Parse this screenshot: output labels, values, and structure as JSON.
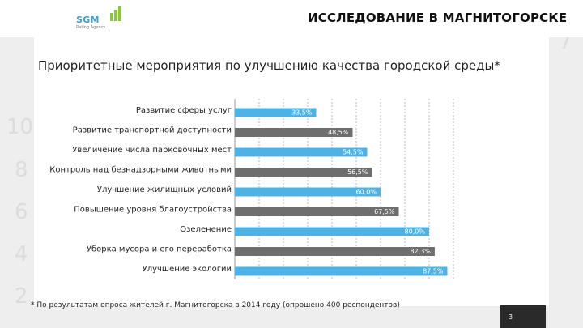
{
  "header": {
    "logo_text": "SGM",
    "logo_subtitle": "Rating Agency",
    "page_title": "ИССЛЕДОВАНИЕ В МАГНИТОГОРСКЕ"
  },
  "subtitle": "Приоритетные мероприятия по улучшению качества городской среды*",
  "footnote": "* По результатам опроса жителей г. Магнитогорска в 2014 году (опрошено 400 респондентов)",
  "page_number": "3",
  "colors": {
    "bar_blue": "#4db3e6",
    "bar_gray": "#6e6e6e",
    "logo_green": "#8cc63f",
    "logo_blue": "#3f9fd3"
  },
  "chart_data": {
    "type": "bar",
    "orientation": "horizontal",
    "categories": [
      "Развитие сферы услуг",
      "Развитие транспортной доступности",
      "Увеличение числа парковочных мест",
      "Контроль над безнадзорными животными",
      "Улучшение жилищных условий",
      "Повышение уровня благоустройства",
      "Озеленение",
      "Уборка мусора и его переработка",
      "Улучшение экологии"
    ],
    "values": [
      33.5,
      48.5,
      54.5,
      56.5,
      60.0,
      67.5,
      80.0,
      82.3,
      87.5
    ],
    "value_labels": [
      "33,5%",
      "48,5%",
      "54,5%",
      "56,5%",
      "60,0%",
      "67,5%",
      "80,0%",
      "82,3%",
      "87,5%"
    ],
    "bar_colors": [
      "blue",
      "gray",
      "blue",
      "gray",
      "blue",
      "gray",
      "blue",
      "gray",
      "blue"
    ],
    "xlim": [
      0,
      100
    ],
    "grid": true,
    "title": "",
    "xlabel": "",
    "ylabel": ""
  }
}
